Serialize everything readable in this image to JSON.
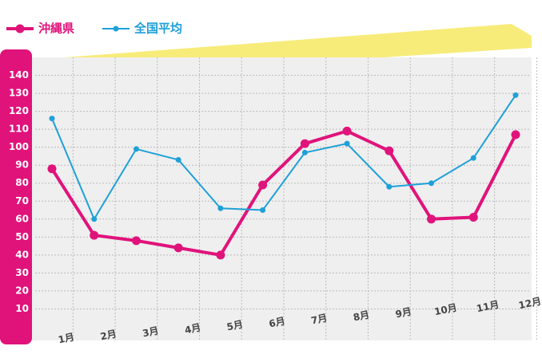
{
  "chart_data": {
    "type": "line",
    "categories": [
      "1月",
      "2月",
      "3月",
      "4月",
      "5月",
      "6月",
      "7月",
      "8月",
      "9月",
      "10月",
      "11月",
      "12月"
    ],
    "series": [
      {
        "name": "沖縄県",
        "color": "#e0137b",
        "values": [
          88,
          51,
          48,
          44,
          40,
          79,
          102,
          109,
          98,
          60,
          61,
          107
        ]
      },
      {
        "name": "全国平均",
        "color": "#1ea0d8",
        "values": [
          116,
          60,
          99,
          93,
          66,
          65,
          97,
          102,
          78,
          80,
          94,
          129
        ]
      }
    ],
    "ylim": [
      0,
      150
    ],
    "yticks": [
      10,
      20,
      30,
      40,
      50,
      60,
      70,
      80,
      90,
      100,
      110,
      120,
      130,
      140
    ],
    "grid": true
  }
}
